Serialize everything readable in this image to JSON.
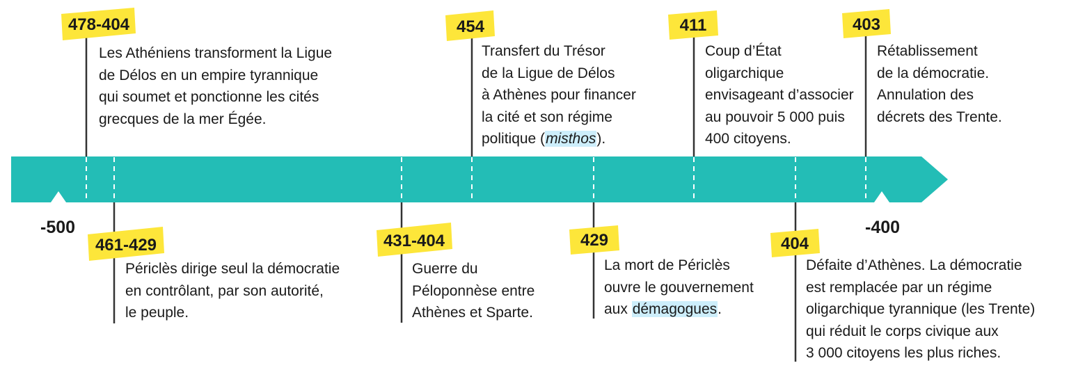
{
  "colors": {
    "band": "#23bdb6",
    "label_bg": "#fde63a",
    "stem": "#333333",
    "dash": "#ffffff",
    "highlight": "#cdeefb",
    "text": "#1a1a1a"
  },
  "axis": {
    "start_label": "-500",
    "end_label": "-400"
  },
  "events_top": [
    {
      "label": "478-404",
      "lines": [
        "Les Athéniens transforment la Ligue",
        "de Délos en un empire tyrannique",
        "qui soumet et ponctionne les cités",
        "grecques de la mer Égée."
      ]
    },
    {
      "label": "454",
      "lines": [
        "Transfert du Trésor",
        "de la Ligue de Délos",
        "à Athènes pour financer",
        "la cité et son régime"
      ],
      "last_line": {
        "pre": "politique (",
        "highlight": "misthos",
        "post": ")."
      }
    },
    {
      "label": "411",
      "lines": [
        "Coup d’État",
        "oligarchique",
        "envisageant d’associer",
        "au pouvoir 5 000 puis",
        "400 citoyens."
      ]
    },
    {
      "label": "403",
      "lines": [
        "Rétablissement",
        "de la démocratie.",
        "Annulation des",
        "décrets des Trente."
      ]
    }
  ],
  "events_bottom": [
    {
      "label": "461-429",
      "lines": [
        "Périclès dirige seul la démocratie",
        "en contrôlant, par son autorité,",
        "le peuple."
      ]
    },
    {
      "label": "431-404",
      "lines": [
        "Guerre du",
        "Péloponnèse entre",
        "Athènes et Sparte."
      ]
    },
    {
      "label": "429",
      "lines": [
        "La mort de Périclès",
        "ouvre le gouvernement"
      ],
      "last_line": {
        "pre": "aux ",
        "highlight": "démagogues",
        "post": "."
      }
    },
    {
      "label": "404",
      "lines": [
        "Défaite d’Athènes. La démocratie",
        "est remplacée par un régime",
        "oligarchique tyrannique (les Trente)",
        "qui réduit le corps civique aux",
        "3 000 citoyens les plus riches."
      ]
    }
  ]
}
